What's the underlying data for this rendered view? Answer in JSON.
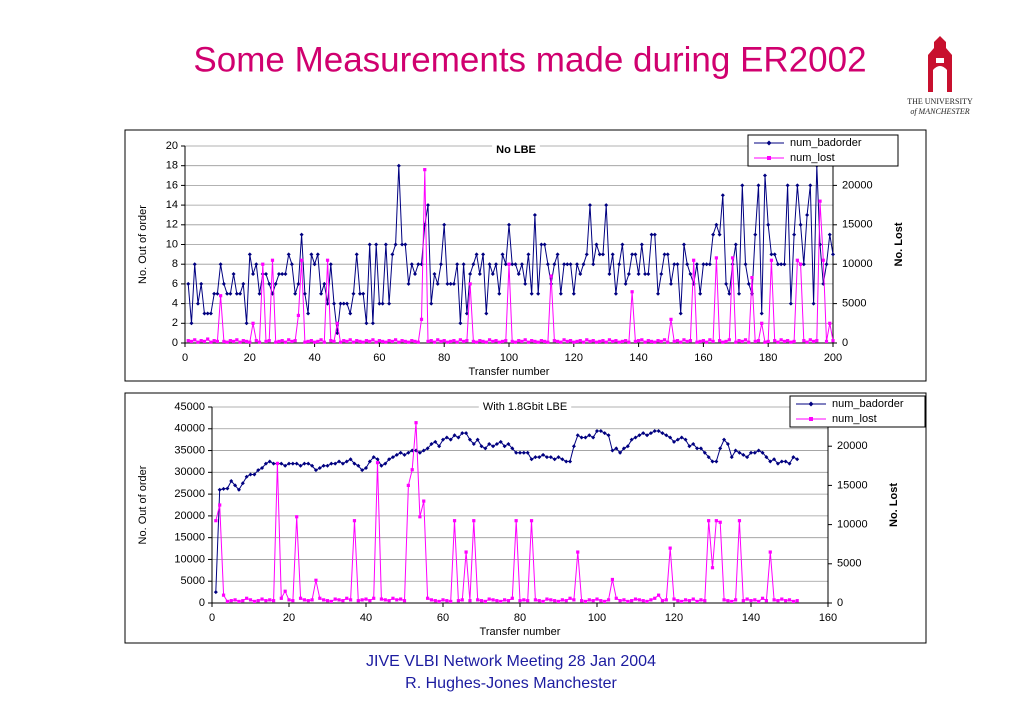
{
  "title": "Some Measurements made during ER2002",
  "logo": [
    "THE UNIVERSITY",
    "of MANCHESTER"
  ],
  "footer": [
    "JIVE VLBI Network Meeting 28 Jan 2004",
    "R. Hughes-Jones  Manchester"
  ],
  "chart_data": [
    {
      "type": "line",
      "title": "No LBE",
      "xlabel": "Transfer number",
      "ylabel": "No. Out of order",
      "y2label": "No. Lost",
      "legend": "upper right",
      "grid": true,
      "xlim": [
        0,
        200
      ],
      "xticks": [
        0,
        20,
        40,
        60,
        80,
        100,
        120,
        140,
        160,
        180,
        200
      ],
      "ylim": [
        0,
        20
      ],
      "yticks": [
        0,
        2,
        4,
        6,
        8,
        10,
        12,
        14,
        16,
        18,
        20
      ],
      "y2lim": [
        0,
        25000
      ],
      "y2ticks": [
        0,
        5000,
        10000,
        15000,
        20000
      ],
      "x": [
        1,
        2,
        3,
        4,
        5,
        6,
        7,
        8,
        9,
        10,
        11,
        12,
        13,
        14,
        15,
        16,
        17,
        18,
        19,
        20,
        21,
        22,
        23,
        24,
        25,
        26,
        27,
        28,
        29,
        30,
        31,
        32,
        33,
        34,
        35,
        36,
        37,
        38,
        39,
        40,
        41,
        42,
        43,
        44,
        45,
        46,
        47,
        48,
        49,
        50,
        51,
        52,
        53,
        54,
        55,
        56,
        57,
        58,
        59,
        60,
        61,
        62,
        63,
        64,
        65,
        66,
        67,
        68,
        69,
        70,
        71,
        72,
        73,
        74,
        75,
        76,
        77,
        78,
        79,
        80,
        81,
        82,
        83,
        84,
        85,
        86,
        87,
        88,
        89,
        90,
        91,
        92,
        93,
        94,
        95,
        96,
        97,
        98,
        99,
        100,
        101,
        102,
        103,
        104,
        105,
        106,
        107,
        108,
        109,
        110,
        111,
        112,
        113,
        114,
        115,
        116,
        117,
        118,
        119,
        120,
        121,
        122,
        123,
        124,
        125,
        126,
        127,
        128,
        129,
        130,
        131,
        132,
        133,
        134,
        135,
        136,
        137,
        138,
        139,
        140,
        141,
        142,
        143,
        144,
        145,
        146,
        147,
        148,
        149,
        150,
        151,
        152,
        153,
        154,
        155,
        156,
        157,
        158,
        159,
        160,
        161,
        162,
        163,
        164,
        165,
        166,
        167,
        168,
        169,
        170,
        171,
        172,
        173,
        174,
        175,
        176,
        177,
        178,
        179,
        180,
        181,
        182,
        183,
        184,
        185,
        186,
        187,
        188,
        189,
        190,
        191,
        192,
        193,
        194,
        195,
        196,
        197,
        198,
        199,
        200
      ],
      "series": [
        {
          "name": "num_badorder",
          "color": "#000080",
          "values": [
            6,
            2,
            8,
            4,
            6,
            3,
            3,
            3,
            5,
            5,
            8,
            6,
            5,
            5,
            7,
            5,
            5,
            6,
            2,
            9,
            7,
            8,
            5,
            7,
            7,
            6,
            5,
            6,
            7,
            7,
            7,
            9,
            8,
            5,
            6,
            11,
            5,
            3,
            9,
            8,
            9,
            5,
            6,
            4,
            8,
            4,
            1,
            4,
            4,
            4,
            3,
            5,
            9,
            5,
            5,
            2,
            10,
            2,
            10,
            4,
            4,
            10,
            4,
            9,
            10,
            18,
            10,
            10,
            6,
            8,
            7,
            8,
            8,
            12,
            14,
            4,
            7,
            6,
            8,
            12,
            6,
            6,
            6,
            8,
            2,
            8,
            3,
            7,
            8,
            9,
            7,
            9,
            3,
            8,
            7,
            8,
            5,
            9,
            8,
            12,
            8,
            8,
            7,
            8,
            6,
            9,
            5,
            13,
            5,
            10,
            10,
            8,
            6,
            8,
            9,
            5,
            8,
            8,
            8,
            5,
            8,
            7,
            8,
            9,
            14,
            8,
            10,
            9,
            9,
            14,
            7,
            9,
            5,
            8,
            10,
            6,
            7,
            9,
            9,
            7,
            10,
            7,
            7,
            11,
            11,
            5,
            7,
            9,
            9,
            6,
            8,
            8,
            3,
            10,
            8,
            7,
            6,
            8,
            5,
            8,
            8,
            8,
            11,
            12,
            11,
            15,
            6,
            5,
            8,
            10,
            5,
            16,
            8,
            6,
            5,
            11,
            16,
            3,
            17,
            12,
            9,
            9,
            8,
            8,
            8,
            16,
            4,
            11,
            16,
            12,
            8,
            13,
            16,
            4,
            18,
            10,
            6,
            8,
            11,
            9
          ]
        },
        {
          "name": "num_lost",
          "color": "#ff00ff",
          "axis": "y2",
          "values": [
            300,
            200,
            400,
            100,
            300,
            200,
            500,
            100,
            300,
            200,
            6000,
            200,
            100,
            300,
            200,
            400,
            100,
            300,
            200,
            100,
            2500,
            300,
            100,
            10000,
            200,
            300,
            10500,
            100,
            200,
            300,
            100,
            400,
            200,
            300,
            3500,
            10500,
            100,
            200,
            300,
            100,
            200,
            400,
            100,
            10500,
            300,
            200,
            2500,
            100,
            300,
            200,
            400,
            100,
            300,
            200,
            100,
            300,
            200,
            400,
            100,
            300,
            200,
            100,
            300,
            200,
            400,
            100,
            300,
            200,
            100,
            300,
            200,
            100,
            3000,
            22000,
            200,
            300,
            100,
            400,
            200,
            300,
            100,
            200,
            300,
            100,
            400,
            200,
            300,
            7500,
            200,
            100,
            300,
            200,
            100,
            400,
            200,
            300,
            100,
            200,
            300,
            10000,
            200,
            100,
            300,
            200,
            400,
            100,
            300,
            200,
            100,
            300,
            200,
            100,
            8500,
            300,
            200,
            100,
            400,
            200,
            300,
            100,
            200,
            300,
            100,
            400,
            200,
            300,
            100,
            200,
            300,
            100,
            400,
            200,
            300,
            100,
            200,
            300,
            100,
            6500,
            200,
            300,
            400,
            100,
            300,
            200,
            100,
            300,
            200,
            400,
            100,
            3000,
            200,
            300,
            100,
            400,
            200,
            300,
            10500,
            100,
            200,
            300,
            100,
            400,
            200,
            10800,
            300,
            100,
            200,
            400,
            10800,
            100,
            300,
            200,
            400,
            100,
            8300,
            200,
            300,
            2500,
            100,
            200,
            10500,
            300,
            100,
            400,
            200,
            300,
            100,
            200,
            10500,
            10000,
            300,
            100,
            400,
            200,
            300,
            18000,
            10500,
            200,
            2500,
            300
          ]
        }
      ]
    },
    {
      "type": "line",
      "title": "With 1.8Gbit LBE",
      "xlabel": "Transfer number",
      "ylabel": "No. Out of order",
      "y2label": "No. Lost",
      "legend": "upper right",
      "grid": true,
      "xlim": [
        0,
        160
      ],
      "xticks": [
        0,
        20,
        40,
        60,
        80,
        100,
        120,
        140,
        160
      ],
      "ylim": [
        0,
        45000
      ],
      "yticks": [
        0,
        5000,
        10000,
        15000,
        20000,
        25000,
        30000,
        35000,
        40000,
        45000
      ],
      "y2lim": [
        0,
        25000
      ],
      "y2ticks": [
        0,
        5000,
        10000,
        15000,
        20000
      ],
      "x": [
        1,
        2,
        3,
        4,
        5,
        6,
        7,
        8,
        9,
        10,
        11,
        12,
        13,
        14,
        15,
        16,
        17,
        18,
        19,
        20,
        21,
        22,
        23,
        24,
        25,
        26,
        27,
        28,
        29,
        30,
        31,
        32,
        33,
        34,
        35,
        36,
        37,
        38,
        39,
        40,
        41,
        42,
        43,
        44,
        45,
        46,
        47,
        48,
        49,
        50,
        51,
        52,
        53,
        54,
        55,
        56,
        57,
        58,
        59,
        60,
        61,
        62,
        63,
        64,
        65,
        66,
        67,
        68,
        69,
        70,
        71,
        72,
        73,
        74,
        75,
        76,
        77,
        78,
        79,
        80,
        81,
        82,
        83,
        84,
        85,
        86,
        87,
        88,
        89,
        90,
        91,
        92,
        93,
        94,
        95,
        96,
        97,
        98,
        99,
        100,
        101,
        102,
        103,
        104,
        105,
        106,
        107,
        108,
        109,
        110,
        111,
        112,
        113,
        114,
        115,
        116,
        117,
        118,
        119,
        120,
        121,
        122,
        123,
        124,
        125,
        126,
        127,
        128,
        129,
        130,
        131,
        132,
        133,
        134,
        135,
        136,
        137,
        138,
        139,
        140,
        141,
        142,
        143,
        144,
        145,
        146,
        147,
        148,
        149,
        150,
        151,
        152
      ],
      "series": [
        {
          "name": "num_badorder",
          "color": "#000080",
          "values": [
            2500,
            26000,
            26200,
            26300,
            28000,
            27000,
            26000,
            27500,
            29000,
            29500,
            29500,
            30500,
            31000,
            32000,
            32500,
            32000,
            32000,
            32000,
            31500,
            32000,
            32000,
            32000,
            31500,
            32000,
            32000,
            31500,
            30500,
            31000,
            31500,
            31500,
            32000,
            32000,
            32500,
            32000,
            32500,
            33000,
            32000,
            31500,
            30500,
            31000,
            32500,
            33500,
            33000,
            31500,
            32000,
            33000,
            33500,
            34000,
            34500,
            34000,
            34500,
            35000,
            35000,
            34500,
            35000,
            35500,
            36500,
            37000,
            36000,
            37500,
            38000,
            37500,
            38500,
            38000,
            39000,
            39000,
            37500,
            36500,
            37500,
            36000,
            35500,
            36500,
            36000,
            36500,
            37000,
            36000,
            36500,
            35500,
            34500,
            34500,
            34500,
            34500,
            33000,
            33500,
            33500,
            34000,
            33500,
            33500,
            33000,
            33500,
            33000,
            32500,
            32500,
            36000,
            38500,
            38000,
            38000,
            38500,
            38000,
            39500,
            39500,
            39000,
            38500,
            35000,
            35500,
            34500,
            35500,
            36000,
            37500,
            38000,
            38500,
            39000,
            38500,
            39000,
            39500,
            39500,
            39000,
            38500,
            38000,
            37000,
            37500,
            38000,
            37500,
            36000,
            36500,
            35500,
            35500,
            34500,
            33500,
            32500,
            32500,
            35500,
            37500,
            36500,
            33500,
            35000,
            34500,
            34000,
            33500,
            34500,
            34500,
            35000,
            34500,
            33500,
            32500,
            33000,
            32000,
            32500,
            32500,
            32000,
            33500,
            33000
          ]
        },
        {
          "name": "num_lost",
          "color": "#ff00ff",
          "axis": "y2",
          "values": [
            10500,
            12500,
            1000,
            200,
            300,
            400,
            200,
            300,
            600,
            400,
            200,
            300,
            500,
            300,
            400,
            300,
            17800,
            600,
            1500,
            400,
            300,
            11000,
            600,
            400,
            300,
            400,
            2900,
            600,
            400,
            300,
            200,
            500,
            400,
            300,
            600,
            400,
            10500,
            300,
            400,
            500,
            300,
            600,
            17900,
            500,
            400,
            300,
            600,
            400,
            500,
            300,
            15000,
            17000,
            23000,
            11000,
            13000,
            600,
            400,
            300,
            200,
            400,
            300,
            200,
            10500,
            300,
            400,
            6500,
            300,
            10500,
            400,
            300,
            200,
            500,
            400,
            300,
            200,
            400,
            300,
            600,
            10500,
            300,
            400,
            300,
            10500,
            400,
            300,
            200,
            500,
            400,
            300,
            200,
            400,
            300,
            600,
            400,
            6500,
            300,
            200,
            400,
            300,
            500,
            300,
            200,
            400,
            3000,
            600,
            300,
            400,
            200,
            300,
            500,
            400,
            300,
            200,
            400,
            600,
            1000,
            300,
            400,
            7000,
            500,
            300,
            200,
            400,
            300,
            500,
            200,
            400,
            300,
            10500,
            4500,
            10500,
            10300,
            400,
            300,
            200,
            400,
            10500,
            300,
            500,
            300,
            400,
            200,
            600,
            300,
            6500,
            400,
            300,
            500,
            300,
            400,
            200,
            300
          ]
        }
      ]
    }
  ]
}
